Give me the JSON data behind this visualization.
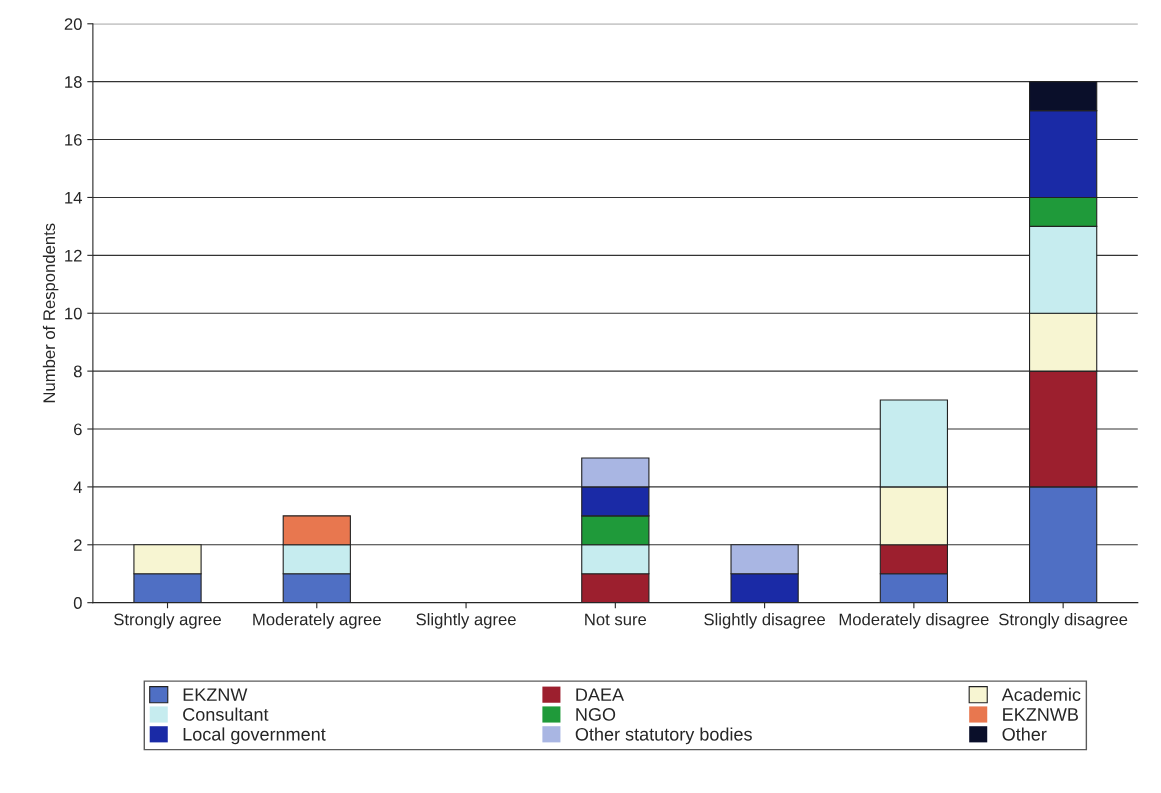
{
  "chart_data": {
    "type": "bar",
    "stacked": true,
    "ylabel": "Number of Respondents",
    "categories": [
      "Strongly agree",
      "Moderately agree",
      "Slightly agree",
      "Not sure",
      "Slightly disagree",
      "Moderately disagree",
      "Strongly disagree"
    ],
    "series": [
      {
        "name": "EKZNW",
        "color": "#4f6fc4",
        "values": [
          1,
          1,
          0,
          0,
          0,
          1,
          4
        ]
      },
      {
        "name": "DAEA",
        "color": "#9c1f2e",
        "values": [
          0,
          0,
          0,
          1,
          0,
          1,
          4
        ]
      },
      {
        "name": "Academic",
        "color": "#f7f5d2",
        "values": [
          1,
          0,
          0,
          0,
          0,
          2,
          2
        ]
      },
      {
        "name": "Consultant",
        "color": "#c6ecef",
        "values": [
          0,
          1,
          0,
          1,
          0,
          3,
          3
        ]
      },
      {
        "name": "NGO",
        "color": "#1f9a3a",
        "values": [
          0,
          0,
          0,
          1,
          0,
          0,
          1
        ]
      },
      {
        "name": "EKZNWB",
        "color": "#e8774f",
        "values": [
          0,
          1,
          0,
          0,
          0,
          0,
          0
        ]
      },
      {
        "name": "Local government",
        "color": "#1a2aa6",
        "values": [
          0,
          0,
          0,
          1,
          1,
          0,
          3
        ]
      },
      {
        "name": "Other statutory bodies",
        "color": "#a9b6e3",
        "values": [
          0,
          0,
          0,
          1,
          1,
          0,
          0
        ]
      },
      {
        "name": "Other",
        "color": "#0a0f2a",
        "values": [
          0,
          0,
          0,
          0,
          0,
          0,
          1
        ]
      }
    ],
    "ylim": [
      0,
      20
    ],
    "yticks": [
      0,
      2,
      4,
      6,
      8,
      10,
      12,
      14,
      16,
      18,
      20
    ],
    "grid": "y",
    "legend": "bottom"
  }
}
